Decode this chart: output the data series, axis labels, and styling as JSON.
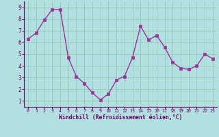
{
  "x": [
    0,
    1,
    2,
    3,
    4,
    5,
    6,
    7,
    8,
    9,
    10,
    11,
    12,
    13,
    14,
    15,
    16,
    17,
    18,
    19,
    20,
    21,
    22,
    23
  ],
  "y": [
    6.3,
    6.8,
    7.9,
    8.8,
    8.8,
    4.7,
    3.1,
    2.5,
    1.7,
    1.1,
    1.6,
    2.8,
    3.1,
    4.7,
    7.4,
    6.2,
    6.6,
    5.6,
    4.3,
    3.8,
    3.7,
    4.0,
    5.0,
    4.6
  ],
  "line_color": "#993399",
  "marker_color": "#993399",
  "bg_color": "#b2e0e0",
  "grid_color": "#99ccbb",
  "xlabel": "Windchill (Refroidissement éolien,°C)",
  "xlabel_color": "#660066",
  "tick_color": "#660066",
  "ylim": [
    0.5,
    9.5
  ],
  "xlim": [
    -0.5,
    23.5
  ],
  "yticks": [
    1,
    2,
    3,
    4,
    5,
    6,
    7,
    8,
    9
  ],
  "xticks": [
    0,
    1,
    2,
    3,
    4,
    5,
    6,
    7,
    8,
    9,
    10,
    11,
    12,
    13,
    14,
    15,
    16,
    17,
    18,
    19,
    20,
    21,
    22,
    23
  ]
}
